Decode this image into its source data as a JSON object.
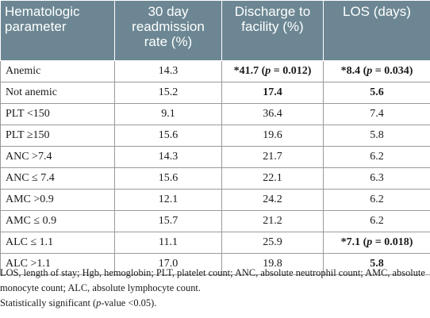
{
  "header": {
    "col1": "Hematologic parameter",
    "col2": "30 day readmission rate (%)",
    "col3": "Discharge to facility (%)",
    "col4": "LOS (days)"
  },
  "rows": [
    {
      "label": "Anemic",
      "readmission": "14.3",
      "discharge": "*41.7 (p = 0.012)",
      "los": "*8.4 (p = 0.034)",
      "bold_discharge": true,
      "bold_los": true
    },
    {
      "label": "Not anemic",
      "readmission": "15.2",
      "discharge": "17.4",
      "los": "5.6",
      "bold_discharge": true,
      "bold_los": true
    },
    {
      "label": "PLT <150",
      "readmission": "9.1",
      "discharge": "36.4",
      "los": "7.4",
      "bold_discharge": false,
      "bold_los": false
    },
    {
      "label": "PLT ≥150",
      "readmission": "15.6",
      "discharge": "19.6",
      "los": "5.8",
      "bold_discharge": false,
      "bold_los": false
    },
    {
      "label": "ANC >7.4",
      "readmission": "14.3",
      "discharge": "21.7",
      "los": "6.2",
      "bold_discharge": false,
      "bold_los": false
    },
    {
      "label": "ANC ≤ 7.4",
      "readmission": "15.6",
      "discharge": "22.1",
      "los": "6.3",
      "bold_discharge": false,
      "bold_los": false
    },
    {
      "label": "AMC >0.9",
      "readmission": "12.1",
      "discharge": "24.2",
      "los": "6.2",
      "bold_discharge": false,
      "bold_los": false
    },
    {
      "label": "AMC ≤ 0.9",
      "readmission": "15.7",
      "discharge": "21.2",
      "los": "6.2",
      "bold_discharge": false,
      "bold_los": false
    },
    {
      "label": "ALC ≤ 1.1",
      "readmission": "11.1",
      "discharge": "25.9",
      "los": "*7.1 (p = 0.018)",
      "bold_discharge": false,
      "bold_los": true
    },
    {
      "label": "ALC >1.1",
      "readmission": "17.0",
      "discharge": "19.8",
      "los": "5.8",
      "bold_discharge": false,
      "bold_los": true
    }
  ],
  "footnotes": {
    "abbrev": "LOS, length of stay; Hgb, hemoglobin; PLT, platelet count; ANC, absolute neutrophil count; AMC, absolute monocyte count; ALC, absolute lymphocyte count.",
    "sig_prefix": "Statistically significant (",
    "sig_italic": "p",
    "sig_suffix": "-value <0.05)."
  },
  "colors": {
    "header_bg": "#6c8793",
    "header_text": "#ffffff",
    "border": "#9a9a9a"
  }
}
